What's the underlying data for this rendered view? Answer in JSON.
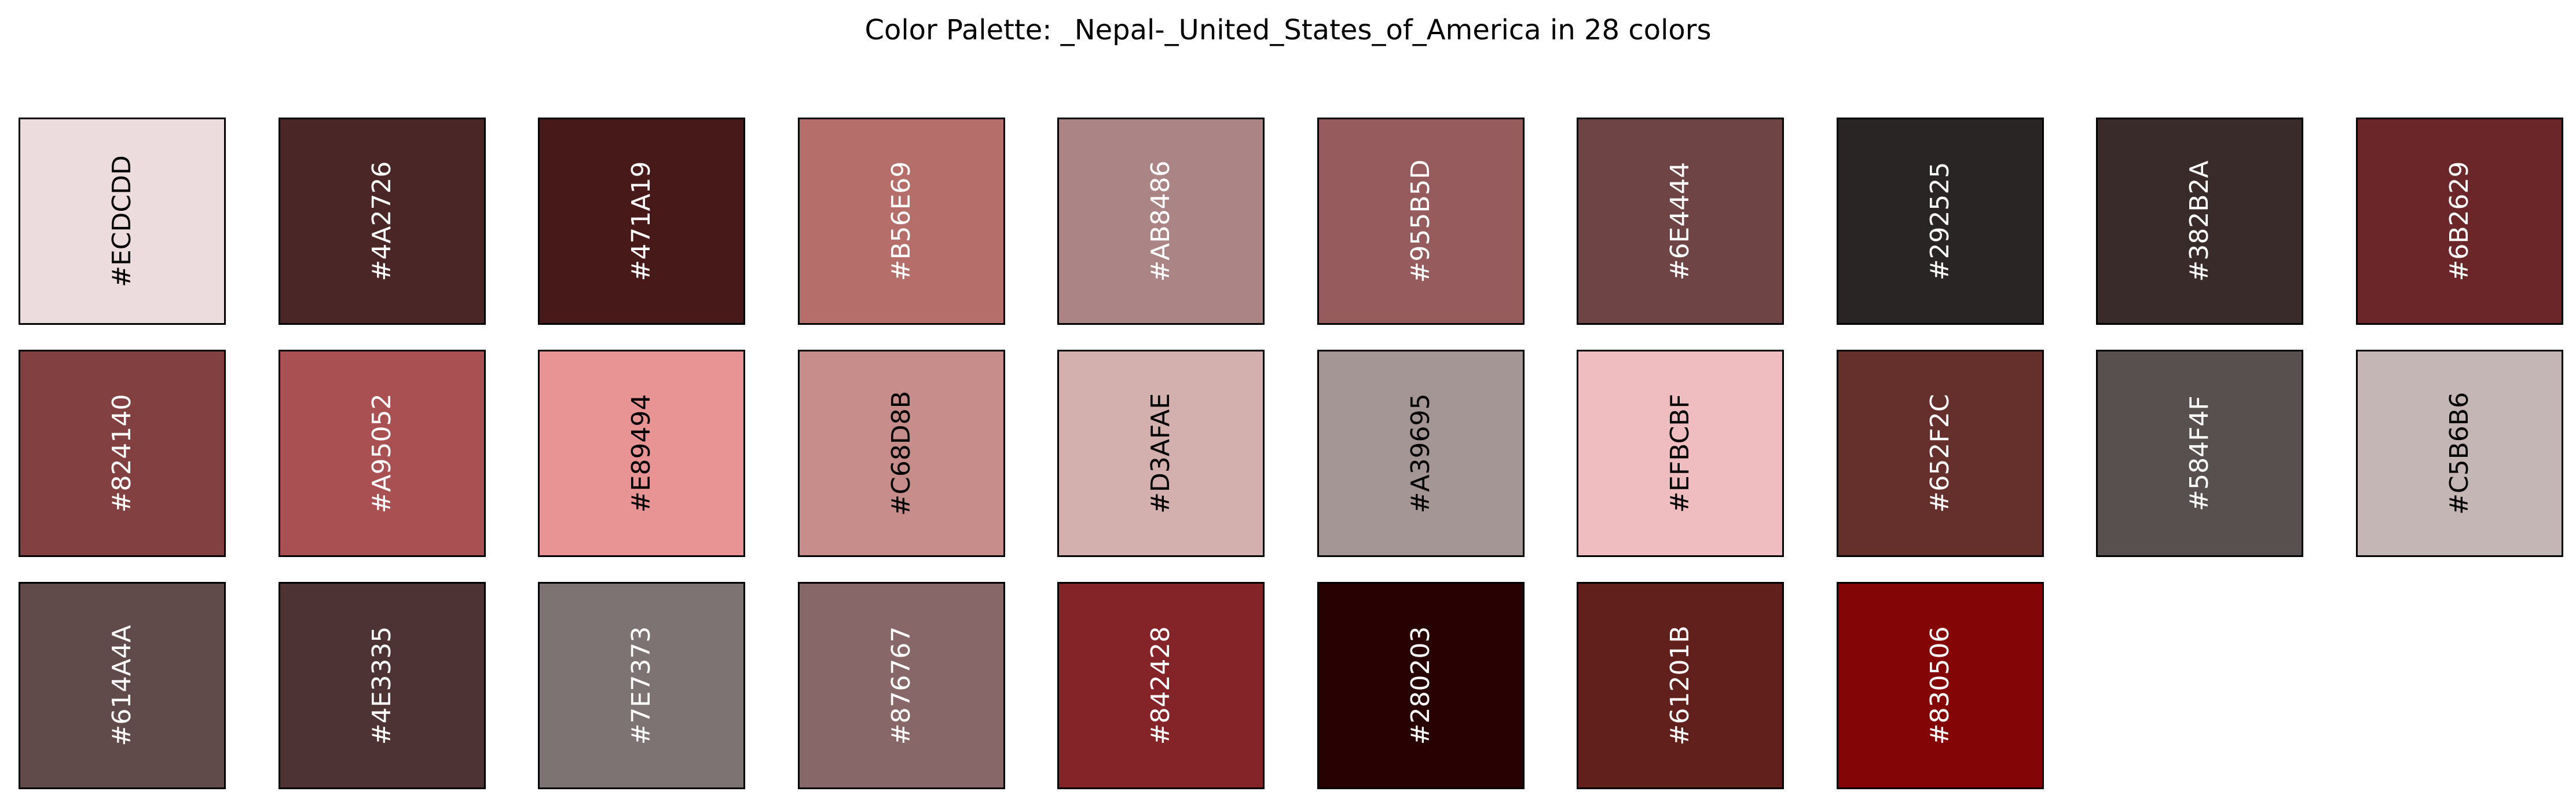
{
  "title": "Color Palette: _Nepal-_United_States_of_America in 28 colors",
  "chart_data": {
    "type": "table",
    "title": "Color Palette: _Nepal-_United_States_of_America in 28 colors",
    "columns": 10,
    "rows": 3,
    "colors": [
      "#ECDCDD",
      "#4A2726",
      "#471A19",
      "#B56E69",
      "#AB8486",
      "#955B5D",
      "#6E4444",
      "#292525",
      "#382B2A",
      "#6B2629",
      "#824140",
      "#A95052",
      "#E89494",
      "#C68D8B",
      "#D3AFAE",
      "#A39695",
      "#EFBCBF",
      "#652F2C",
      "#584F4F",
      "#C5B6B6",
      "#614A4A",
      "#4E3335",
      "#7E7373",
      "#876767",
      "#842428",
      "#280203",
      "#61201B",
      "#830506"
    ]
  }
}
